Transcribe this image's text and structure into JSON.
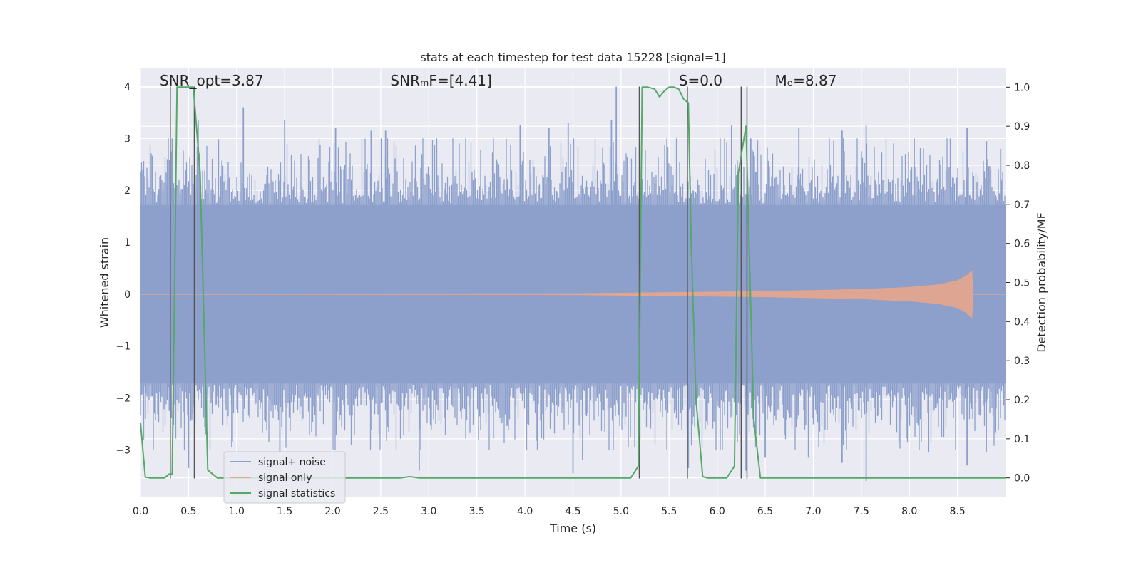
{
  "chart_data": {
    "type": "line",
    "title": "stats at each timestep for test data 15228 [signal=1]",
    "xlabel": "Time (s)",
    "ylabel": "Whitened strain",
    "ylabel_right": "Detection probability/MF",
    "xlim": [
      0.0,
      9.0
    ],
    "ylim": [
      -3.9,
      4.35
    ],
    "ylim_right": [
      -0.048,
      1.048
    ],
    "x_ticks": [
      0.0,
      0.5,
      1.0,
      1.5,
      2.0,
      2.5,
      3.0,
      3.5,
      4.0,
      4.5,
      5.0,
      5.5,
      6.0,
      6.5,
      7.0,
      7.5,
      8.0,
      8.5
    ],
    "x_tick_labels": [
      "0.0",
      "0.5",
      "1.0",
      "1.5",
      "2.0",
      "2.5",
      "3.0",
      "3.5",
      "4.0",
      "4.5",
      "5.0",
      "5.5",
      "6.0",
      "6.5",
      "7.0",
      "7.5",
      "8.0",
      "8.5"
    ],
    "y_ticks": [
      -3,
      -2,
      -1,
      0,
      1,
      2,
      3,
      4
    ],
    "y_tick_labels": [
      "−3",
      "−2",
      "−1",
      "0",
      "1",
      "2",
      "3",
      "4"
    ],
    "y_ticks_right": [
      0.0,
      0.1,
      0.2,
      0.3,
      0.4,
      0.5,
      0.6,
      0.7,
      0.8,
      0.9,
      1.0
    ],
    "y_tick_labels_right": [
      "0.0",
      "0.1",
      "0.2",
      "0.3",
      "0.4",
      "0.5",
      "0.6",
      "0.7",
      "0.8",
      "0.9",
      "1.0"
    ],
    "grid": true,
    "annotations": [
      {
        "text": "SNR_opt=3.87",
        "x": 0.2,
        "y": 4.05
      },
      {
        "text": "SNRₘF=[4.41]",
        "x": 2.6,
        "y": 4.05
      },
      {
        "text": "S=0.0",
        "x": 5.6,
        "y": 4.05
      },
      {
        "text": "Mₑ=8.87",
        "x": 6.6,
        "y": 4.05
      }
    ],
    "signal_noise": {
      "name": "signal+ noise",
      "color": "#8da0cb",
      "band_x": [
        0.0,
        9.0
      ],
      "band_upper": 1.72,
      "band_lower": -1.72,
      "peaks_upper": [
        [
          0.2,
          2.0
        ],
        [
          0.28,
          2.6
        ],
        [
          0.33,
          3.0
        ],
        [
          0.47,
          2.4
        ],
        [
          0.6,
          3.35
        ],
        [
          1.07,
          3.6
        ],
        [
          1.5,
          3.35
        ],
        [
          2.03,
          3.2
        ],
        [
          2.4,
          3.15
        ],
        [
          2.55,
          3.15
        ],
        [
          3.95,
          3.25
        ],
        [
          4.25,
          3.2
        ],
        [
          4.45,
          3.3
        ],
        [
          4.9,
          3.35
        ],
        [
          4.95,
          4.0
        ],
        [
          6.15,
          3.25
        ],
        [
          6.35,
          3.0
        ],
        [
          6.85,
          3.2
        ],
        [
          7.3,
          3.15
        ],
        [
          7.55,
          3.25
        ],
        [
          8.05,
          3.0
        ],
        [
          8.6,
          3.2
        ],
        [
          8.95,
          2.8
        ]
      ],
      "peaks_lower": [
        [
          0.05,
          -2.4
        ],
        [
          0.3,
          -2.25
        ],
        [
          0.5,
          -3.35
        ],
        [
          0.95,
          -2.95
        ],
        [
          1.45,
          -3.05
        ],
        [
          2.9,
          -3.4
        ],
        [
          4.5,
          -3.45
        ],
        [
          4.6,
          -3.2
        ],
        [
          5.7,
          -3.35
        ],
        [
          6.3,
          -3.4
        ],
        [
          6.5,
          -3.15
        ],
        [
          6.95,
          -3.15
        ],
        [
          7.3,
          -3.25
        ],
        [
          7.55,
          -3.6
        ],
        [
          8.2,
          -3.05
        ],
        [
          8.6,
          -3.3
        ],
        [
          8.8,
          -3.05
        ]
      ]
    },
    "signal_only": {
      "name": "signal only",
      "color": "#e6a58c",
      "x": [
        0.0,
        4.5,
        5.5,
        6.5,
        7.5,
        8.0,
        8.3,
        8.5,
        8.6,
        8.65,
        8.66,
        9.0
      ],
      "amplitude": [
        0.0,
        0.01,
        0.03,
        0.05,
        0.09,
        0.13,
        0.18,
        0.26,
        0.36,
        0.45,
        0.0,
        0.0
      ]
    },
    "signal_statistics": {
      "name": "signal statistics",
      "color": "#55a868",
      "x": [
        0.0,
        0.05,
        0.1,
        0.25,
        0.3,
        0.33,
        0.38,
        0.45,
        0.55,
        0.62,
        0.7,
        0.8,
        0.9,
        2.7,
        2.8,
        2.9,
        5.1,
        5.18,
        5.22,
        5.28,
        5.35,
        5.4,
        5.45,
        5.5,
        5.55,
        5.6,
        5.65,
        5.7,
        5.73,
        5.78,
        5.85,
        5.9,
        6.1,
        6.18,
        6.22,
        6.3,
        6.38,
        6.45,
        9.0
      ],
      "y": [
        0.14,
        0.002,
        0.0,
        0.0,
        0.01,
        0.01,
        1.0,
        1.0,
        1.0,
        0.78,
        0.02,
        0.0,
        0.0,
        0.0,
        0.003,
        0.0,
        0.0,
        0.03,
        1.0,
        1.0,
        0.995,
        0.975,
        0.99,
        1.0,
        1.0,
        0.995,
        0.97,
        0.96,
        0.6,
        0.2,
        0.003,
        0.0,
        0.0,
        0.03,
        0.78,
        0.9,
        0.15,
        0.0,
        0.0
      ]
    },
    "vertical_lines_x": [
      0.31,
      0.56,
      5.19,
      5.69,
      6.25,
      6.31
    ],
    "vertical_lines_range": [
      -3.55,
      4.0
    ],
    "legend": {
      "placement": "lower-left",
      "entries": [
        "signal+ noise",
        "signal only",
        "signal statistics"
      ]
    }
  },
  "colors": {
    "plot_background": "#eaeaf2",
    "grid": "#ffffff",
    "vline": "#555555",
    "text": "#262626"
  }
}
